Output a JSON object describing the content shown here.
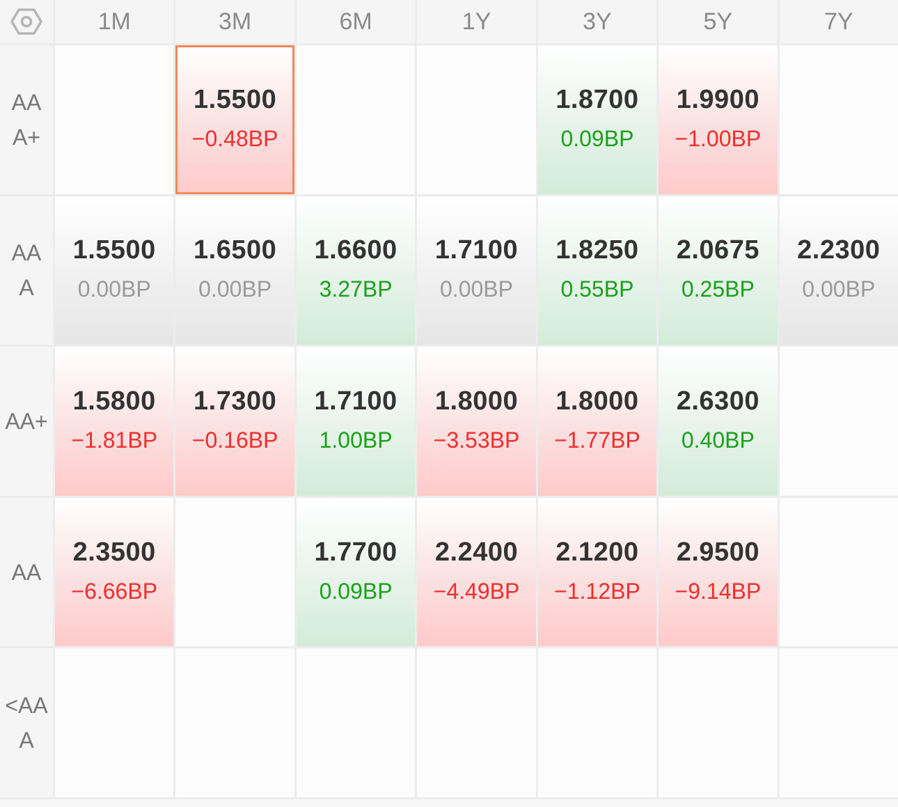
{
  "columns": [
    "1M",
    "3M",
    "6M",
    "1Y",
    "3Y",
    "5Y",
    "7Y"
  ],
  "settings_icon": "hexagon-settings-icon",
  "colors": {
    "up": "#ef2d2d",
    "down": "#1aa11a",
    "flat": "#9a9a9a",
    "selected_border": "#f0895a"
  },
  "rows": [
    {
      "label": "AAA+",
      "cells": [
        null,
        {
          "rate": "1.5500",
          "change": "−0.48BP",
          "trend": "up",
          "selected": true
        },
        null,
        null,
        {
          "rate": "1.8700",
          "change": "0.09BP",
          "trend": "down"
        },
        {
          "rate": "1.9900",
          "change": "−1.00BP",
          "trend": "up"
        },
        null
      ]
    },
    {
      "label": "AAA",
      "cells": [
        {
          "rate": "1.5500",
          "change": "0.00BP",
          "trend": "flat"
        },
        {
          "rate": "1.6500",
          "change": "0.00BP",
          "trend": "flat"
        },
        {
          "rate": "1.6600",
          "change": "3.27BP",
          "trend": "down"
        },
        {
          "rate": "1.7100",
          "change": "0.00BP",
          "trend": "flat"
        },
        {
          "rate": "1.8250",
          "change": "0.55BP",
          "trend": "down"
        },
        {
          "rate": "2.0675",
          "change": "0.25BP",
          "trend": "down"
        },
        {
          "rate": "2.2300",
          "change": "0.00BP",
          "trend": "flat"
        }
      ]
    },
    {
      "label": "AA+",
      "cells": [
        {
          "rate": "1.5800",
          "change": "−1.81BP",
          "trend": "up"
        },
        {
          "rate": "1.7300",
          "change": "−0.16BP",
          "trend": "up"
        },
        {
          "rate": "1.7100",
          "change": "1.00BP",
          "trend": "down"
        },
        {
          "rate": "1.8000",
          "change": "−3.53BP",
          "trend": "up"
        },
        {
          "rate": "1.8000",
          "change": "−1.77BP",
          "trend": "up"
        },
        {
          "rate": "2.6300",
          "change": "0.40BP",
          "trend": "down"
        },
        null
      ]
    },
    {
      "label": "AA",
      "cells": [
        {
          "rate": "2.3500",
          "change": "−6.66BP",
          "trend": "up"
        },
        null,
        {
          "rate": "1.7700",
          "change": "0.09BP",
          "trend": "down"
        },
        {
          "rate": "2.2400",
          "change": "−4.49BP",
          "trend": "up"
        },
        {
          "rate": "2.1200",
          "change": "−1.12BP",
          "trend": "up"
        },
        {
          "rate": "2.9500",
          "change": "−9.14BP",
          "trend": "up"
        },
        null
      ]
    },
    {
      "label": "<AAA",
      "cells": [
        null,
        null,
        null,
        null,
        null,
        null,
        null
      ]
    }
  ]
}
